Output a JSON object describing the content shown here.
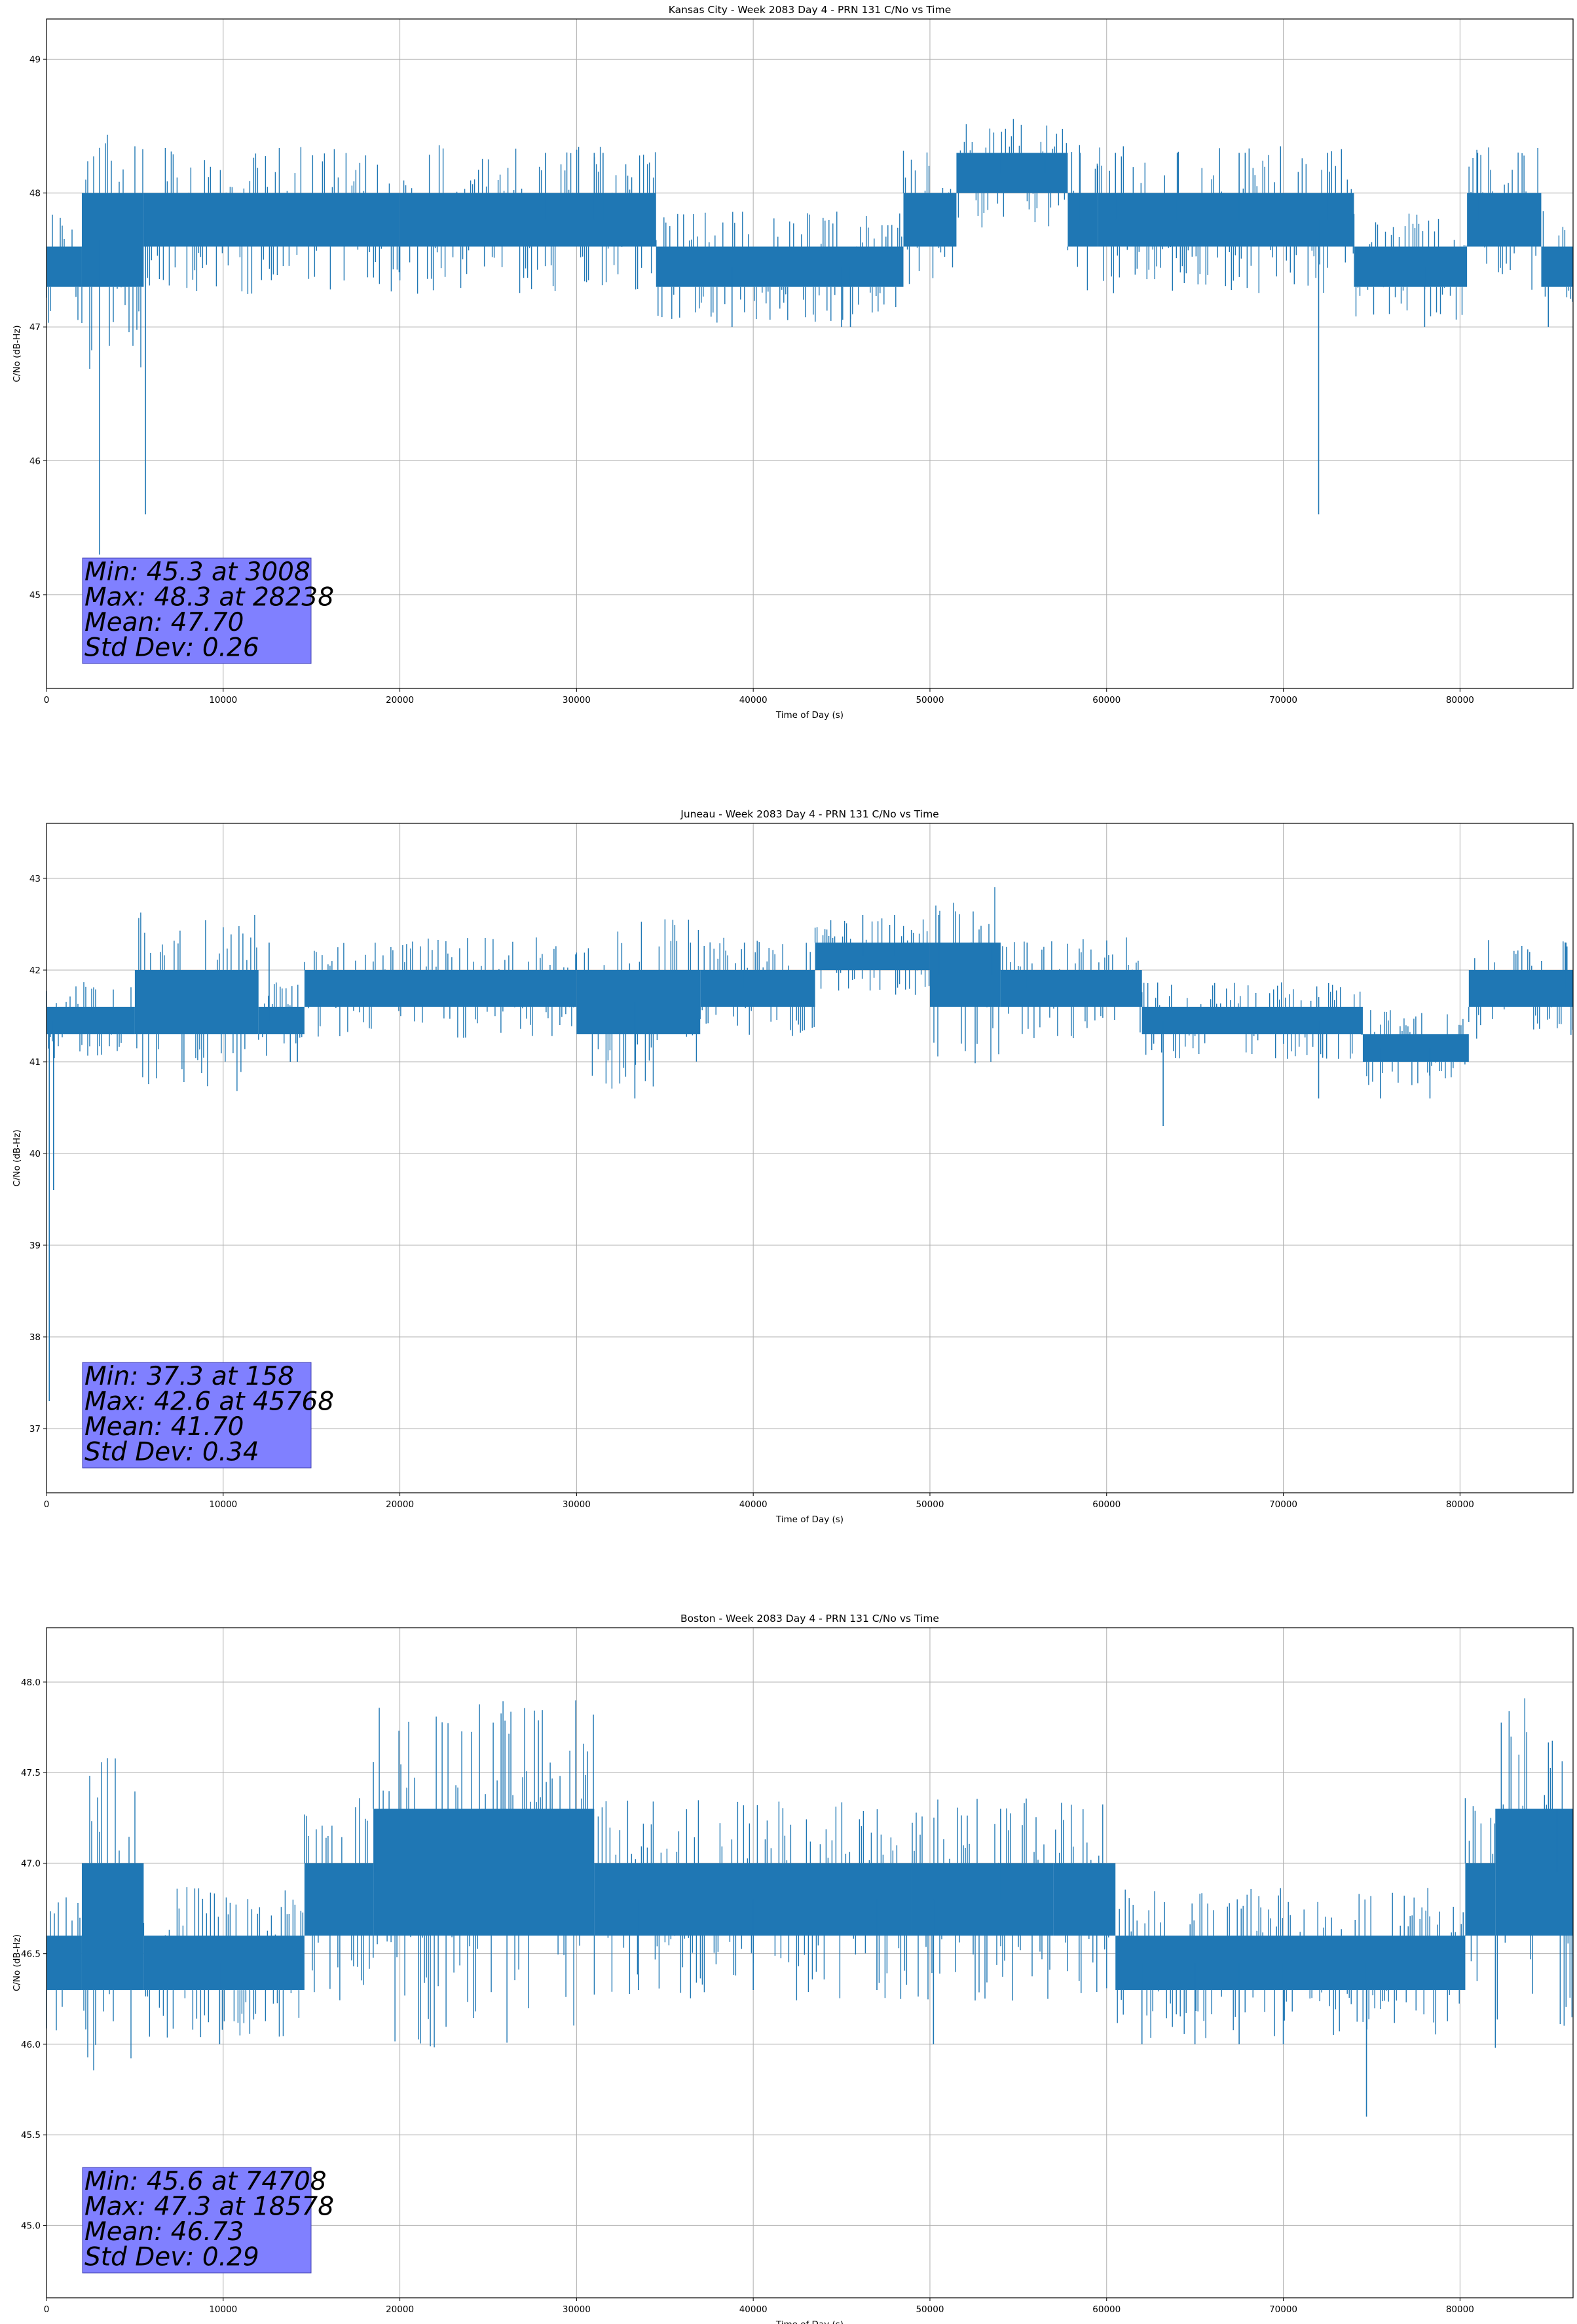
{
  "chart_data": [
    {
      "type": "line",
      "title": "Kansas City - Week 2083 Day 4 - PRN 131 C/No vs Time",
      "xlabel": "Time of Day (s)",
      "ylabel": "C/No (dB-Hz)",
      "xlim": [
        0,
        86400
      ],
      "ylim": [
        44.3,
        49.3
      ],
      "xticks": [
        0,
        10000,
        20000,
        30000,
        40000,
        50000,
        60000,
        70000,
        80000
      ],
      "yticks": [
        45,
        46,
        47,
        48,
        49
      ],
      "ytick_labels": [
        "45",
        "46",
        "47",
        "48",
        "49"
      ],
      "grid": true,
      "color": "#1f77b4",
      "series": [
        {
          "band_segments": [
            [
              0,
              2000,
              47.3,
              47.6
            ],
            [
              2000,
              5500,
              47.3,
              48.0
            ],
            [
              5500,
              20000,
              47.6,
              48.0
            ],
            [
              20000,
              34500,
              47.6,
              48.0
            ],
            [
              34500,
              48500,
              47.3,
              47.6
            ],
            [
              48500,
              51500,
              47.6,
              48.0
            ],
            [
              51500,
              57800,
              48.0,
              48.3
            ],
            [
              57800,
              59500,
              47.6,
              48.0
            ],
            [
              59500,
              74000,
              47.6,
              48.0
            ],
            [
              74000,
              80400,
              47.3,
              47.6
            ],
            [
              80400,
              84600,
              47.6,
              48.0
            ],
            [
              84600,
              86400,
              47.3,
              47.6
            ]
          ],
          "spikes": [
            [
              3008,
              45.3
            ],
            [
              5600,
              45.6
            ],
            [
              28238,
              48.3
            ],
            [
              31000,
              48.3
            ],
            [
              31500,
              48.3
            ],
            [
              38800,
              47.0
            ],
            [
              45000,
              47.0
            ],
            [
              45500,
              47.0
            ],
            [
              54000,
              48.3
            ],
            [
              56500,
              48.3
            ],
            [
              58500,
              48.3
            ],
            [
              60500,
              48.3
            ],
            [
              64000,
              48.3
            ],
            [
              67500,
              48.3
            ],
            [
              72000,
              45.6
            ],
            [
              72500,
              48.3
            ],
            [
              78000,
              47.0
            ],
            [
              81000,
              48.3
            ],
            [
              85000,
              47.0
            ]
          ]
        }
      ],
      "annotation": [
        "Min: 45.3 at 3008",
        "Max: 48.3 at 28238",
        "Mean: 47.70",
        "Std Dev: 0.26"
      ]
    },
    {
      "type": "line",
      "title": "Juneau - Week 2083 Day 4 - PRN 131 C/No vs Time",
      "xlabel": "Time of Day (s)",
      "ylabel": "C/No (dB-Hz)",
      "xlim": [
        0,
        86400
      ],
      "ylim": [
        36.3,
        43.6
      ],
      "xticks": [
        0,
        10000,
        20000,
        30000,
        40000,
        50000,
        60000,
        70000,
        80000
      ],
      "yticks": [
        37,
        38,
        39,
        40,
        41,
        42,
        43
      ],
      "ytick_labels": [
        "37",
        "38",
        "39",
        "40",
        "41",
        "42",
        "43"
      ],
      "grid": true,
      "color": "#1f77b4",
      "series": [
        {
          "band_segments": [
            [
              0,
              5000,
              41.3,
              41.6
            ],
            [
              5000,
              12000,
              41.3,
              42.0
            ],
            [
              12000,
              14600,
              41.3,
              41.6
            ],
            [
              14600,
              30000,
              41.6,
              42.0
            ],
            [
              30000,
              37000,
              41.3,
              42.0
            ],
            [
              37000,
              43500,
              41.6,
              42.0
            ],
            [
              43500,
              50000,
              42.0,
              42.3
            ],
            [
              50000,
              54000,
              41.6,
              42.3
            ],
            [
              54000,
              62000,
              41.6,
              42.0
            ],
            [
              62000,
              74500,
              41.3,
              41.6
            ],
            [
              74500,
              80500,
              41.0,
              41.3
            ],
            [
              80500,
              86400,
              41.6,
              42.0
            ]
          ],
          "spikes": [
            [
              158,
              37.3
            ],
            [
              400,
              39.6
            ],
            [
              12600,
              42.3
            ],
            [
              13800,
              41.0
            ],
            [
              14200,
              41.0
            ],
            [
              33300,
              40.6
            ],
            [
              39500,
              42.3
            ],
            [
              46200,
              42.6
            ],
            [
              48000,
              42.6
            ],
            [
              50500,
              42.6
            ],
            [
              53500,
              42.3
            ],
            [
              55500,
              42.3
            ],
            [
              63200,
              40.3
            ],
            [
              72000,
              40.6
            ],
            [
              75500,
              40.6
            ],
            [
              78300,
              40.6
            ],
            [
              86000,
              42.3
            ]
          ]
        }
      ],
      "annotation": [
        "Min: 37.3 at 158",
        "Max: 42.6 at 45768",
        "Mean: 41.70",
        "Std Dev: 0.34"
      ]
    },
    {
      "type": "line",
      "title": "Boston - Week 2083 Day 4 - PRN 131 C/No vs Time",
      "xlabel": "Time of Day (s)",
      "ylabel": "C/No (dB-Hz)",
      "xlim": [
        0,
        86400
      ],
      "ylim": [
        44.6,
        48.3
      ],
      "xticks": [
        0,
        10000,
        20000,
        30000,
        40000,
        50000,
        60000,
        70000,
        80000
      ],
      "yticks": [
        45.0,
        45.5,
        46.0,
        46.5,
        47.0,
        47.5,
        48.0
      ],
      "ytick_labels": [
        "45.0",
        "45.5",
        "46.0",
        "46.5",
        "47.0",
        "47.5",
        "48.0"
      ],
      "grid": true,
      "color": "#1f77b4",
      "series": [
        {
          "band_segments": [
            [
              0,
              2000,
              46.3,
              46.6
            ],
            [
              2000,
              5500,
              46.3,
              47.0
            ],
            [
              5500,
              14600,
              46.3,
              46.6
            ],
            [
              14600,
              18500,
              46.6,
              47.0
            ],
            [
              18500,
              31000,
              46.6,
              47.3
            ],
            [
              31000,
              49000,
              46.6,
              47.0
            ],
            [
              49000,
              57000,
              46.6,
              47.0
            ],
            [
              57000,
              60500,
              46.6,
              47.0
            ],
            [
              60500,
              80300,
              46.3,
              46.6
            ],
            [
              80300,
              82000,
              46.6,
              47.0
            ],
            [
              82000,
              86400,
              46.6,
              47.3
            ]
          ],
          "spikes": [
            [
              9800,
              46.0
            ],
            [
              18578,
              47.3
            ],
            [
              33500,
              46.3
            ],
            [
              40000,
              46.3
            ],
            [
              47000,
              46.3
            ],
            [
              50200,
              46.0
            ],
            [
              54000,
              47.3
            ],
            [
              62000,
              46.0
            ],
            [
              65000,
              46.0
            ],
            [
              67500,
              46.0
            ],
            [
              70000,
              46.0
            ],
            [
              74708,
              45.6
            ],
            [
              85500,
              47.3
            ]
          ]
        }
      ],
      "annotation": [
        "Min: 45.6 at 74708",
        "Max: 47.3 at 18578",
        "Mean: 46.73",
        "Std Dev: 0.29"
      ]
    }
  ]
}
